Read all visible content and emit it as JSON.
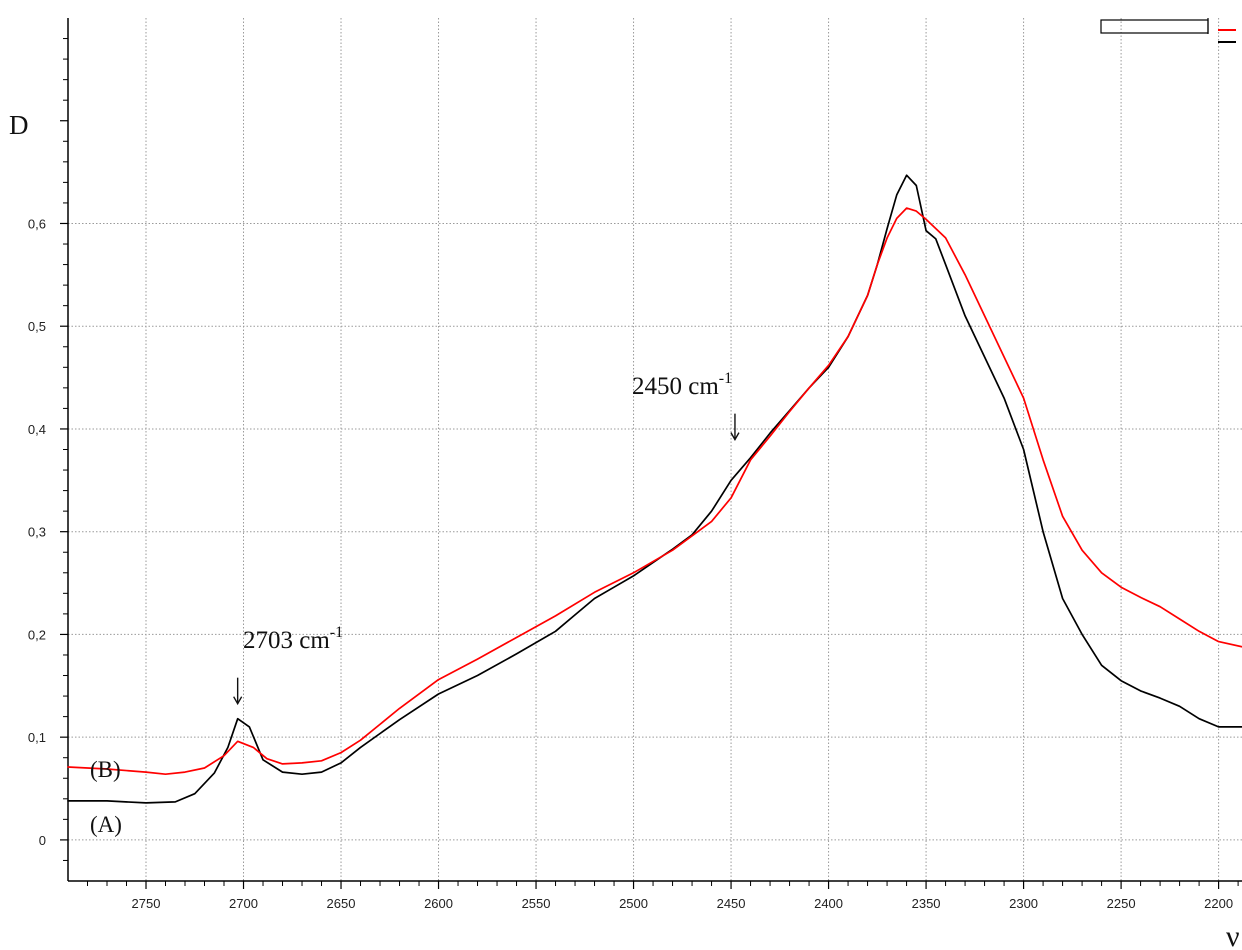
{
  "chart_data": {
    "type": "line",
    "ylabel": "D",
    "xlabel": "ν",
    "xlim": [
      2790,
      2188
    ],
    "ylim": [
      -0.04,
      0.8
    ],
    "grid": true,
    "x_ticks": [
      2750,
      2700,
      2650,
      2600,
      2550,
      2500,
      2450,
      2400,
      2350,
      2300,
      2250,
      2200
    ],
    "x_tick_labels": [
      "2750",
      "2700",
      "2650",
      "2600",
      "2550",
      "2500",
      "2450",
      "2400",
      "2350",
      "2300",
      "2250",
      "2200"
    ],
    "y_ticks": [
      0,
      0.1,
      0.2,
      0.3,
      0.4,
      0.5,
      0.6
    ],
    "y_tick_labels": [
      "0",
      "0,1",
      "0,2",
      "0,3",
      "0,4",
      "0,5",
      "0,6"
    ],
    "series": [
      {
        "name": "(A)",
        "color": "#000000",
        "x": [
          2790,
          2770,
          2750,
          2735,
          2725,
          2715,
          2708,
          2703,
          2697,
          2690,
          2680,
          2670,
          2660,
          2650,
          2640,
          2620,
          2600,
          2580,
          2560,
          2540,
          2530,
          2520,
          2510,
          2500,
          2490,
          2480,
          2470,
          2460,
          2450,
          2440,
          2430,
          2420,
          2410,
          2400,
          2390,
          2380,
          2375,
          2370,
          2365,
          2360,
          2355,
          2350,
          2345,
          2340,
          2330,
          2320,
          2310,
          2300,
          2290,
          2280,
          2270,
          2260,
          2250,
          2240,
          2230,
          2220,
          2210,
          2200,
          2188
        ],
        "y": [
          0.038,
          0.038,
          0.036,
          0.037,
          0.045,
          0.065,
          0.09,
          0.118,
          0.11,
          0.078,
          0.066,
          0.064,
          0.066,
          0.075,
          0.09,
          0.117,
          0.142,
          0.16,
          0.181,
          0.203,
          0.219,
          0.235,
          0.246,
          0.257,
          0.27,
          0.283,
          0.297,
          0.32,
          0.35,
          0.372,
          0.396,
          0.418,
          0.44,
          0.46,
          0.49,
          0.53,
          0.56,
          0.595,
          0.628,
          0.647,
          0.637,
          0.593,
          0.585,
          0.56,
          0.51,
          0.47,
          0.43,
          0.38,
          0.3,
          0.235,
          0.2,
          0.17,
          0.155,
          0.145,
          0.138,
          0.13,
          0.118,
          0.11,
          0.11
        ]
      },
      {
        "name": "(B)",
        "color": "#ff0000",
        "x": [
          2790,
          2770,
          2750,
          2740,
          2730,
          2720,
          2710,
          2703,
          2695,
          2688,
          2680,
          2670,
          2660,
          2650,
          2640,
          2620,
          2600,
          2580,
          2560,
          2540,
          2520,
          2500,
          2480,
          2460,
          2450,
          2440,
          2430,
          2420,
          2410,
          2400,
          2390,
          2380,
          2375,
          2370,
          2365,
          2360,
          2355,
          2350,
          2340,
          2330,
          2320,
          2310,
          2300,
          2290,
          2280,
          2270,
          2260,
          2250,
          2240,
          2230,
          2220,
          2210,
          2200,
          2188
        ],
        "y": [
          0.071,
          0.069,
          0.066,
          0.064,
          0.066,
          0.07,
          0.082,
          0.096,
          0.09,
          0.079,
          0.074,
          0.075,
          0.077,
          0.085,
          0.097,
          0.128,
          0.156,
          0.176,
          0.197,
          0.218,
          0.241,
          0.26,
          0.282,
          0.31,
          0.333,
          0.37,
          0.393,
          0.417,
          0.44,
          0.462,
          0.49,
          0.53,
          0.56,
          0.586,
          0.605,
          0.615,
          0.612,
          0.604,
          0.586,
          0.55,
          0.51,
          0.47,
          0.43,
          0.37,
          0.315,
          0.282,
          0.26,
          0.246,
          0.236,
          0.227,
          0.215,
          0.203,
          0.193,
          0.188
        ]
      }
    ],
    "annotations": [
      {
        "label": "2703 cm",
        "superscript": "-1",
        "x": 2703,
        "y": 0.118
      },
      {
        "label": "2450 cm",
        "superscript": "-1",
        "x": 2448,
        "y": 0.375
      }
    ],
    "curve_labels": [
      "(A)",
      "(B)"
    ]
  }
}
